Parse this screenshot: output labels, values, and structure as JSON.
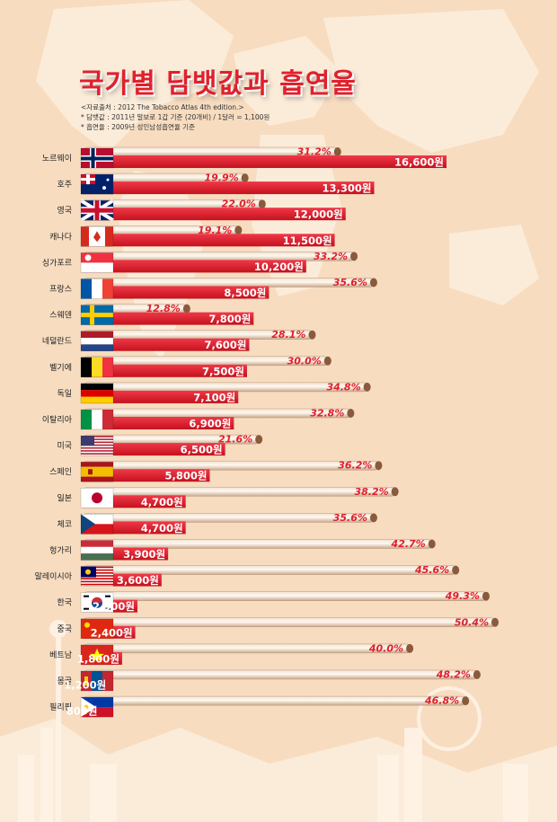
{
  "header": {
    "title": "국가별 담뱃값과 흡연율",
    "source": "<자료출처 : 2012 The Tobacco Atlas 4th edition.>",
    "note_price": "* 담뱃값 : 2011년 말보로 1갑 기준 (20개비) / 1달러 = 1,100원",
    "note_rate": "* 흡연율 : 2009년 성인남성흡연율 기준"
  },
  "colors": {
    "price_bar": "#e0202c",
    "rate_bar": "#e6cbb2",
    "background": "#f7dcc0",
    "title": "#e0202c"
  },
  "chart_data": {
    "type": "bar",
    "categories": [
      "노르웨이",
      "호주",
      "영국",
      "캐나다",
      "싱가포르",
      "프랑스",
      "스웨덴",
      "네덜란드",
      "벨기에",
      "독일",
      "이탈리아",
      "미국",
      "스페인",
      "일본",
      "체코",
      "헝가리",
      "말레이시아",
      "한국",
      "중국",
      "베트남",
      "몽골",
      "필리핀"
    ],
    "series": [
      {
        "key": "rate",
        "values": [
          31.2,
          19.9,
          22.0,
          19.1,
          33.2,
          35.6,
          12.8,
          28.1,
          30.0,
          34.8,
          32.8,
          21.6,
          36.2,
          38.2,
          35.6,
          42.7,
          45.6,
          49.3,
          50.4,
          40.0,
          48.2,
          46.8
        ]
      },
      {
        "key": "price",
        "values": [
          16600,
          13300,
          12000,
          11500,
          10200,
          8500,
          7800,
          7600,
          7500,
          7100,
          6900,
          6500,
          5800,
          4700,
          4700,
          3900,
          3600,
          2500,
          2400,
          1800,
          1200,
          800
        ]
      }
    ],
    "rate_labels": [
      "31.2%",
      "19.9%",
      "22.0%",
      "19.1%",
      "33.2%",
      "35.6%",
      "12.8%",
      "28.1%",
      "30.0%",
      "34.8%",
      "32.8%",
      "21.6%",
      "36.2%",
      "38.2%",
      "35.6%",
      "42.7%",
      "45.6%",
      "49.3%",
      "50.4%",
      "40.0%",
      "48.2%",
      "46.8%"
    ],
    "price_labels": [
      "16,600원",
      "13,300원",
      "12,000원",
      "11,500원",
      "10,200원",
      "8,500원",
      "7,800원",
      "7,600원",
      "7,500원",
      "7,100원",
      "6,900원",
      "6,500원",
      "5,800원",
      "4,700원",
      "4,700원",
      "3,900원",
      "3,600원",
      "2,500원",
      "2,400원",
      "1,800원",
      "1,200원",
      "800원"
    ],
    "flag_icons": [
      "norway-flag-icon",
      "australia-flag-icon",
      "uk-flag-icon",
      "canada-flag-icon",
      "singapore-flag-icon",
      "france-flag-icon",
      "sweden-flag-icon",
      "netherlands-flag-icon",
      "belgium-flag-icon",
      "germany-flag-icon",
      "italy-flag-icon",
      "usa-flag-icon",
      "spain-flag-icon",
      "japan-flag-icon",
      "czech-flag-icon",
      "hungary-flag-icon",
      "malaysia-flag-icon",
      "korea-flag-icon",
      "china-flag-icon",
      "vietnam-flag-icon",
      "mongolia-flag-icon",
      "philippines-flag-icon"
    ]
  }
}
